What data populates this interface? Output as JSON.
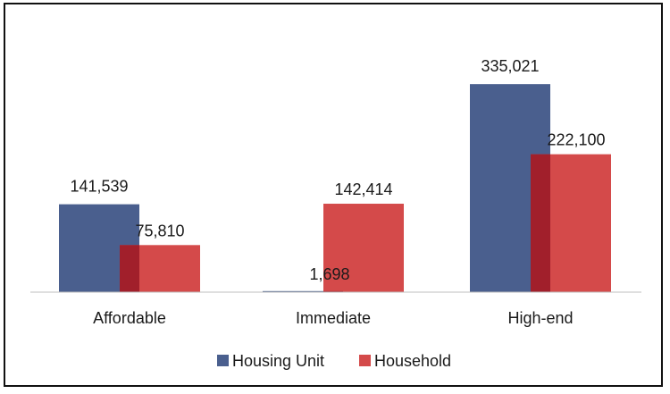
{
  "chart_data": {
    "type": "bar",
    "categories": [
      "Affordable",
      "Immediate",
      "High-end"
    ],
    "series": [
      {
        "name": "Housing Unit",
        "values": [
          141539,
          1698,
          335021
        ],
        "labels": [
          "141,539",
          "1,698",
          "335,021"
        ],
        "color": "#4a5f8e"
      },
      {
        "name": "Household",
        "values": [
          75810,
          142414,
          222100
        ],
        "labels": [
          "75,810",
          "142,414",
          "222,100"
        ],
        "color": "#d44a4a"
      }
    ],
    "overlap_color": "#a11f2b",
    "ylim": [
      0,
      400000
    ],
    "grid": false,
    "legend": "bottom"
  }
}
